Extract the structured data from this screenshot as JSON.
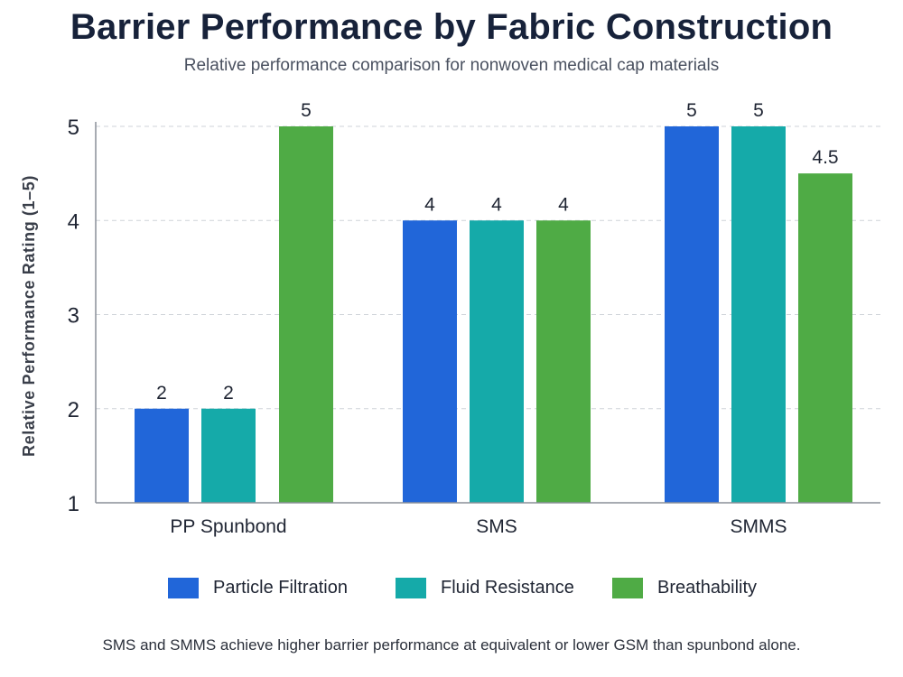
{
  "chart_data": {
    "type": "bar",
    "title": "Barrier Performance by Fabric Construction",
    "subtitle": "Relative performance comparison for nonwoven medical cap materials",
    "ylabel": "Relative Performance Rating (1–5)",
    "xlabel": "",
    "ylim": [
      1,
      5
    ],
    "yticks": [
      1,
      2,
      3,
      4,
      5
    ],
    "grid": true,
    "legend_position": "bottom",
    "categories": [
      "PP Spunbond",
      "SMS",
      "SMMS"
    ],
    "series": [
      {
        "name": "Particle Filtration",
        "color": "#2166d9",
        "values": [
          2,
          4,
          5
        ]
      },
      {
        "name": "Fluid Resistance",
        "color": "#15aaa9",
        "values": [
          2,
          4,
          5
        ]
      },
      {
        "name": "Breathability",
        "color": "#4fab45",
        "values": [
          5,
          4,
          4.5
        ]
      }
    ],
    "note": "SMS and SMMS achieve higher barrier performance at equivalent or lower GSM than spunbond alone."
  }
}
